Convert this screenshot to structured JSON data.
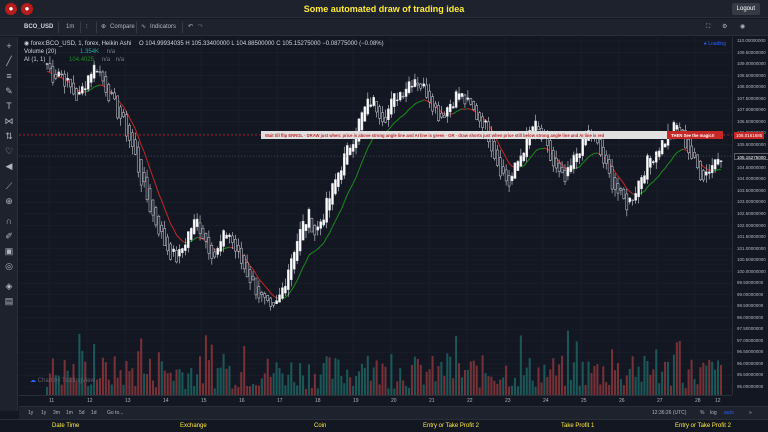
{
  "header": {
    "title": "Some automated draw of trading idea",
    "logout_label": "Logout"
  },
  "toolbar": {
    "symbol": "BCO_USD",
    "interval": "1m",
    "compare_label": "Compare",
    "indicators_label": "Indicators"
  },
  "legend": {
    "main": "forex:BCO_USD, 1, forex, Heikin Ashi",
    "ohlc": "O 104.99934035  H 105.33400000  L 104.88500000  C 105.15275000  −0.08775000 (−0.08%)",
    "volume_label": "Volume (20)",
    "volume_value": "1.354K",
    "volume_na": "n/a",
    "ai_label": "AI (1, 1)",
    "ai_value": "104.4025",
    "ai_na1": "n/a",
    "ai_na2": "n/a"
  },
  "loading_label": "Loading",
  "signal_bar": {
    "text": "Wait till flip ERROL  ·  DRAW just when: price is above strong angle line and AI line is green  ·  OR  ·  draw shorts just when price still below strong angle line and AI line is red",
    "right_label": "THEN See the magic!!",
    "price_tag": "106.0161685"
  },
  "price_axis": {
    "labels": [
      "110.00000000",
      "109.50000000",
      "109.00000000",
      "108.50000000",
      "108.00000000",
      "107.50000000",
      "107.00000000",
      "106.50000000",
      "106.00000000",
      "105.50000000",
      "105.00000000",
      "104.50000000",
      "104.00000000",
      "103.50000000",
      "103.00000000",
      "102.50000000",
      "102.00000000",
      "101.50000000",
      "101.00000000",
      "100.50000000",
      "100.00000000",
      "99.50000000",
      "99.00000000",
      "98.50000000",
      "98.00000000",
      "97.50000000",
      "97.00000000",
      "96.50000000",
      "96.00000000",
      "95.50000000",
      "95.00000000"
    ],
    "current_price_label": "105.15275000",
    "current_price_label2": "104.60000000"
  },
  "time_axis": {
    "labels": [
      "11",
      "12",
      "13",
      "14",
      "15",
      "16",
      "17",
      "18",
      "19",
      "20",
      "21",
      "22",
      "23",
      "24",
      "25",
      "26",
      "27",
      "28"
    ],
    "extra_label": "12"
  },
  "bottom_bar": {
    "ranges": [
      "1y",
      "1y",
      "3m",
      "1m",
      "5d",
      "1d"
    ],
    "goto_label": "Go to...",
    "time": "12:36:26 (UTC)",
    "percent_label": "%",
    "log_label": "log",
    "auto_label": "auto"
  },
  "watermark": "Chart by TradingView",
  "footer": {
    "items": [
      "Date Time",
      "Exchange",
      "Coin",
      "Entry or Take Profit 2",
      "Take Profit 1",
      "Entry or Take Profit 2"
    ]
  },
  "colors": {
    "up": "#26a69a",
    "down": "#ef5350",
    "candle_up_fill": "#ffffff",
    "ai_green": "#1b8c1b",
    "ai_red": "#c62828",
    "signal_bg": "#e0e0e0",
    "signal_text": "#c62828",
    "accent": "#ffeb3b"
  },
  "chart_data": {
    "type": "candlestick",
    "series_count_hint": "daily heikin ashi bars for 11–28 period",
    "x_ticks": [
      "11",
      "12",
      "13",
      "14",
      "15",
      "16",
      "17",
      "18",
      "19",
      "20",
      "21",
      "22",
      "23",
      "24",
      "25",
      "26",
      "27",
      "28"
    ],
    "ylim": [
      94.8,
      110.2
    ],
    "closes": [
      109.2,
      108.6,
      108.9,
      108.4,
      108.0,
      107.6,
      108.3,
      108.9,
      109.1,
      108.4,
      107.8,
      107.2,
      106.7,
      106.0,
      105.2,
      104.1,
      103.2,
      102.4,
      101.8,
      101.1,
      100.7,
      100.5,
      101.2,
      101.9,
      102.2,
      101.6,
      101.0,
      100.6,
      101.3,
      101.8,
      101.0,
      100.4,
      99.9,
      99.4,
      98.9,
      98.5,
      98.0,
      98.6,
      99.4,
      100.5,
      101.3,
      102.0,
      102.4,
      101.6,
      102.3,
      103.0,
      103.8,
      104.6,
      105.2,
      105.9,
      106.6,
      107.2,
      107.6,
      107.2,
      106.8,
      107.3,
      107.8,
      108.0,
      108.4,
      108.6,
      108.2,
      107.9,
      107.3,
      106.8,
      107.2,
      107.6,
      107.9,
      107.5,
      107.2,
      106.8,
      106.6,
      105.8,
      104.9,
      104.3,
      103.8,
      104.5,
      105.2,
      105.9,
      106.5,
      106.0,
      105.4,
      104.7,
      104.2,
      103.9,
      104.6,
      105.3,
      105.8,
      106.2,
      105.6,
      104.9,
      104.2,
      103.7,
      103.2,
      102.9,
      103.4,
      104.1,
      104.7,
      105.1,
      105.5,
      105.8,
      106.2,
      106.4,
      105.9,
      105.2,
      104.6,
      104.2,
      104.5,
      104.9,
      105.2
    ]
  }
}
